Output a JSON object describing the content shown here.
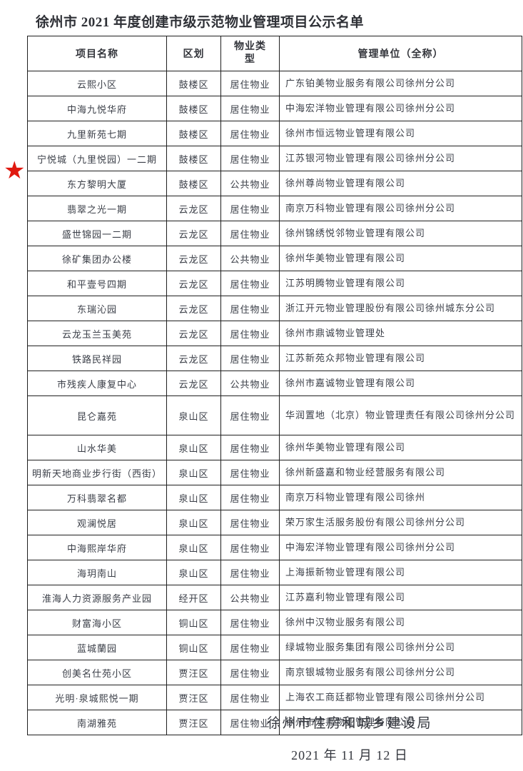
{
  "title": "徐州市 2021 年度创建市级示范物业管理项目公示名单",
  "star_icon": "★",
  "colors": {
    "star_red": "#e01910",
    "text": "#3a3e47",
    "border": "#1f1f1f"
  },
  "table": {
    "headers": [
      "项目名称",
      "区划",
      "物业类型",
      "管理单位（全称）"
    ],
    "rows": [
      {
        "name": "云熙小区",
        "district": "鼓楼区",
        "type": "居住物业",
        "company": "广东铂美物业服务有限公司徐州分公司",
        "starred": false
      },
      {
        "name": "中海九悦华府",
        "district": "鼓楼区",
        "type": "居住物业",
        "company": "中海宏洋物业管理有限公司徐州分公司",
        "starred": false
      },
      {
        "name": "九里新苑七期",
        "district": "鼓楼区",
        "type": "居住物业",
        "company": "徐州市恒远物业管理有限公司",
        "starred": false
      },
      {
        "name": "宁悦城（九里悦园）一二期",
        "district": "鼓楼区",
        "type": "居住物业",
        "company": "江苏银河物业管理有限公司徐州分公司",
        "starred": false
      },
      {
        "name": "东方黎明大厦",
        "district": "鼓楼区",
        "type": "公共物业",
        "company": "徐州尊尚物业管理有限公司",
        "starred": true
      },
      {
        "name": "翡翠之光一期",
        "district": "云龙区",
        "type": "居住物业",
        "company": "南京万科物业管理有限公司徐州分公司",
        "starred": false
      },
      {
        "name": "盛世锦园一二期",
        "district": "云龙区",
        "type": "居住物业",
        "company": "徐州锦绣悦邻物业管理有限公司",
        "starred": false
      },
      {
        "name": "徐矿集团办公楼",
        "district": "云龙区",
        "type": "公共物业",
        "company": "徐州华美物业管理有限公司",
        "starred": false
      },
      {
        "name": "和平壹号四期",
        "district": "云龙区",
        "type": "居住物业",
        "company": "江苏明腾物业管理有限公司",
        "starred": false
      },
      {
        "name": "东瑞沁园",
        "district": "云龙区",
        "type": "居住物业",
        "company": "浙江开元物业管理股份有限公司徐州城东分公司",
        "starred": false
      },
      {
        "name": "云龙玉兰玉美苑",
        "district": "云龙区",
        "type": "居住物业",
        "company": "徐州市鼎诚物业管理处",
        "starred": false
      },
      {
        "name": "铁路民祥园",
        "district": "云龙区",
        "type": "居住物业",
        "company": "江苏新苑众邦物业管理有限公司",
        "starred": false
      },
      {
        "name": "市残疾人康复中心",
        "district": "云龙区",
        "type": "公共物业",
        "company": "徐州市嘉诚物业管理有限公司",
        "starred": false
      },
      {
        "name": "昆仑嘉苑",
        "district": "泉山区",
        "type": "居住物业",
        "company": "华润置地（北京）物业管理责任有限公司徐州分公司",
        "starred": false,
        "tall": true
      },
      {
        "name": "山水华美",
        "district": "泉山区",
        "type": "居住物业",
        "company": "徐州华美物业管理有限公司",
        "starred": false
      },
      {
        "name": "明新天地商业步行街（西街）",
        "district": "泉山区",
        "type": "居住物业",
        "company": "徐州新盛嘉和物业经营服务有限公司",
        "starred": false
      },
      {
        "name": "万科翡翠名都",
        "district": "泉山区",
        "type": "居住物业",
        "company": "南京万科物业管理有限公司徐州",
        "starred": false
      },
      {
        "name": "观澜悦居",
        "district": "泉山区",
        "type": "居住物业",
        "company": "荣万家生活服务股份有限公司徐州分公司",
        "starred": false
      },
      {
        "name": "中海熙岸华府",
        "district": "泉山区",
        "type": "居住物业",
        "company": "中海宏洋物业管理有限公司徐州分公司",
        "starred": false
      },
      {
        "name": "海玥南山",
        "district": "泉山区",
        "type": "居住物业",
        "company": "上海振新物业管理有限公司",
        "starred": false
      },
      {
        "name": "淮海人力资源服务产业园",
        "district": "经开区",
        "type": "公共物业",
        "company": "江苏嘉利物业管理有限公司",
        "starred": false
      },
      {
        "name": "财富海小区",
        "district": "铜山区",
        "type": "居住物业",
        "company": "徐州中汉物业服务有限公司",
        "starred": false
      },
      {
        "name": "蓝城蘭园",
        "district": "铜山区",
        "type": "居住物业",
        "company": "绿城物业服务集团有限公司徐州分公司",
        "starred": false
      },
      {
        "name": "创美名仕苑小区",
        "district": "贾汪区",
        "type": "居住物业",
        "company": "南京银城物业服务有限公司徐州分公司",
        "starred": false
      },
      {
        "name": "光明·泉城熙悦一期",
        "district": "贾汪区",
        "type": "居住物业",
        "company": "上海农工商廷都物业管理有限公司徐州分公司",
        "starred": false
      },
      {
        "name": "南湖雅苑",
        "district": "贾汪区",
        "type": "居住物业",
        "company": "徐州市宏邦物业管理有限公司",
        "starred": false
      }
    ]
  },
  "footer": {
    "issuer": "徐州市住房和城乡建设局",
    "date": "2021 年 11 月 12 日"
  }
}
